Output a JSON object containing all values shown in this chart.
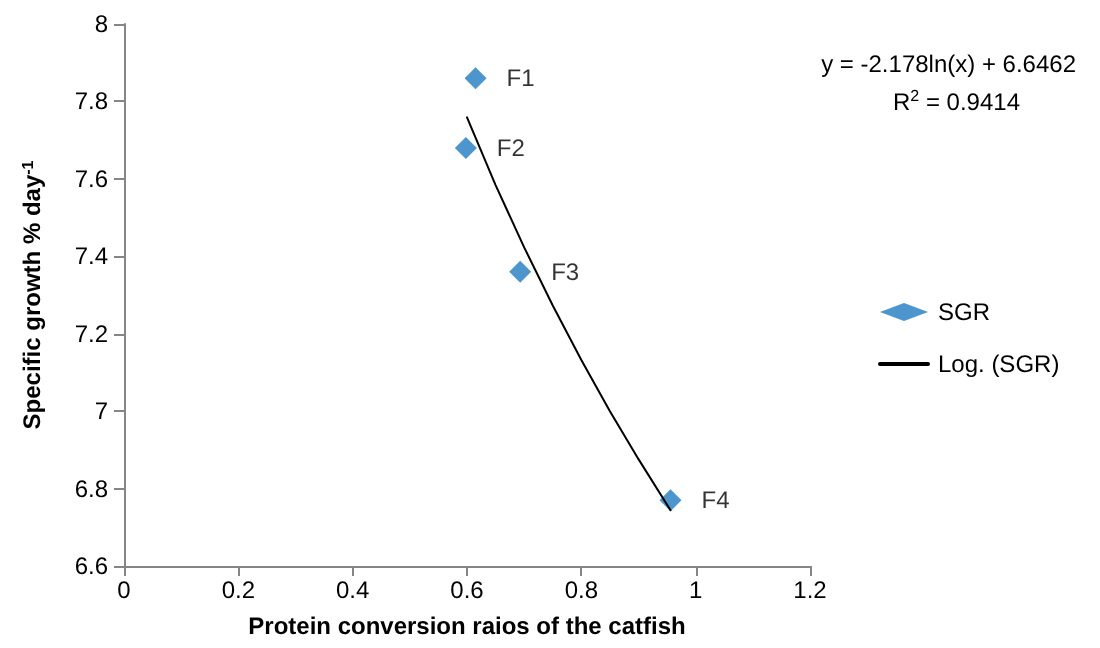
{
  "chart_data": {
    "type": "scatter",
    "xlabel": "Protein conversion raios of the catfish",
    "ylabel": "Specific growth % day$^{-1}$",
    "xlim": [
      0,
      1.2
    ],
    "xticks": [
      0,
      0.2,
      0.4,
      0.6,
      0.8,
      1,
      1.2
    ],
    "ylim": [
      6.6,
      8
    ],
    "yticks": [
      6.6,
      6.8,
      7,
      7.2,
      7.4,
      7.6,
      7.8,
      8
    ],
    "grid": false,
    "legend": "right",
    "annotations": [
      "y = -2.178ln(x) + 6.6462",
      "R$^{2}$ = 0.9414"
    ],
    "series": [
      {
        "name": "SGR",
        "marker": "diamond",
        "color": "#1f7bc1",
        "x": [
          0.615,
          0.598,
          0.693,
          0.956
        ],
        "values": [
          7.86,
          7.68,
          7.36,
          6.77
        ],
        "value_labels": [
          "F1",
          "F2",
          "F3",
          "F4"
        ]
      },
      {
        "name": "Log. (SGR)",
        "type": "line",
        "marker": "none",
        "line_style": "solid",
        "color": "#000000",
        "x": [
          0.6,
          0.65,
          0.7,
          0.75,
          0.8,
          0.85,
          0.9,
          0.956
        ],
        "values": [
          7.759,
          7.584,
          7.423,
          7.273,
          7.132,
          7.0,
          6.876,
          6.744
        ]
      }
    ]
  }
}
